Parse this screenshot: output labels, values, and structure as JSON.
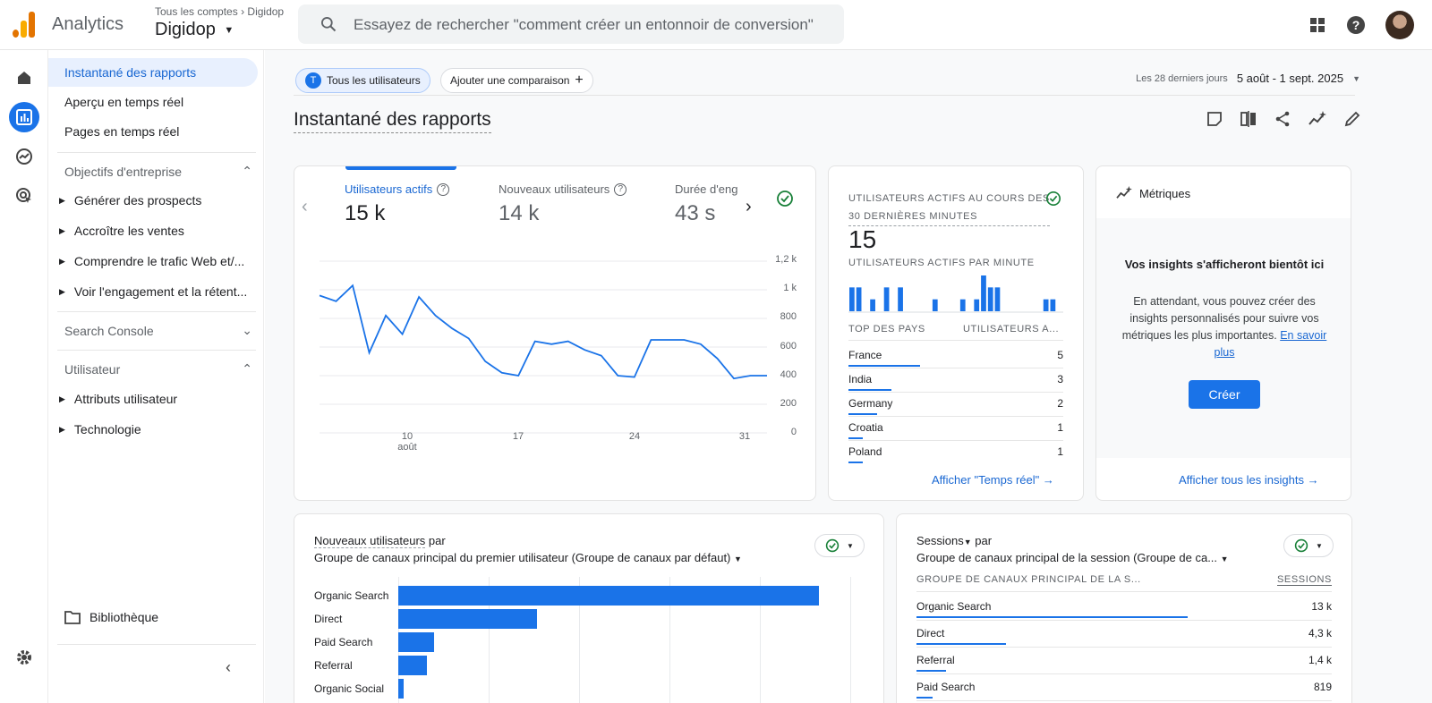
{
  "header": {
    "app_name": "Analytics",
    "account_breadcrumb": "Tous les comptes",
    "account_breadcrumb_property": "Digidop",
    "property_name": "Digidop",
    "search_placeholder": "Essayez de rechercher \"comment créer un entonnoir de conversion\""
  },
  "nav": {
    "items": [
      {
        "label": "Instantané des rapports"
      },
      {
        "label": "Aperçu en temps réel"
      },
      {
        "label": "Pages en temps réel"
      }
    ],
    "section_objectives": "Objectifs d'entreprise",
    "objectives": [
      "Générer des prospects",
      "Accroître les ventes",
      "Comprendre le trafic Web et/...",
      "Voir l'engagement et la rétent..."
    ],
    "section_search_console": "Search Console",
    "section_user": "Utilisateur",
    "user_items": [
      "Attributs utilisateur",
      "Technologie"
    ],
    "library": "Bibliothèque"
  },
  "toolbar": {
    "segment_initial": "T",
    "segment": "Tous les utilisateurs",
    "add_comparison": "Ajouter une comparaison",
    "date_label": "Les 28 derniers jours",
    "date_range": "5 août - 1 sept. 2025"
  },
  "page_title": "Instantané des rapports",
  "metrics_card": {
    "metrics": [
      {
        "label": "Utilisateurs actifs",
        "value": "15 k"
      },
      {
        "label": "Nouveaux utilisateurs",
        "value": "14 k"
      },
      {
        "label": "Durée d'eng",
        "value": "43 s"
      }
    ],
    "y_ticks": [
      "1,2 k",
      "1 k",
      "800",
      "600",
      "400",
      "200",
      "0"
    ],
    "x_ticks": [
      "10",
      "17",
      "24",
      "31"
    ],
    "x_month": "août"
  },
  "chart_data": {
    "type": "line",
    "title": "Utilisateurs actifs",
    "x": [
      5,
      6,
      7,
      8,
      9,
      10,
      11,
      12,
      13,
      14,
      15,
      16,
      17,
      18,
      19,
      20,
      21,
      22,
      23,
      24,
      25,
      26,
      27,
      28,
      29,
      30,
      31,
      32
    ],
    "values": [
      960,
      920,
      1030,
      560,
      820,
      690,
      950,
      820,
      730,
      660,
      500,
      420,
      400,
      640,
      620,
      640,
      580,
      540,
      400,
      390,
      650,
      650,
      650,
      620,
      520,
      380,
      400,
      400
    ],
    "ylim": [
      0,
      1200
    ],
    "xlabel": "",
    "ylabel": ""
  },
  "realtime_card": {
    "title_line1": "Utilisateurs actifs au cours des",
    "title_line2": "30 dernières minutes",
    "value": "15",
    "per_minute_label": "Utilisateurs actifs par minute",
    "per_minute_bars": [
      2,
      2,
      0,
      1,
      0,
      2,
      0,
      2,
      0,
      0,
      0,
      0,
      1,
      0,
      0,
      0,
      1,
      0,
      1,
      3,
      2,
      2,
      0,
      0,
      0,
      0,
      0,
      0,
      1,
      1,
      0
    ],
    "col_country": "Top des pays",
    "col_users": "Utilisateurs a...",
    "countries": [
      {
        "name": "France",
        "value": "5",
        "share": 1.0
      },
      {
        "name": "India",
        "value": "3",
        "share": 0.6
      },
      {
        "name": "Germany",
        "value": "2",
        "share": 0.4
      },
      {
        "name": "Croatia",
        "value": "1",
        "share": 0.2
      },
      {
        "name": "Poland",
        "value": "1",
        "share": 0.2
      }
    ],
    "link": "Afficher \"Temps réel\""
  },
  "insights_card": {
    "title": "Métriques",
    "heading": "Vos insights s'afficheront bientôt ici",
    "body": "En attendant, vous pouvez créer des insights personnalisés pour suivre vos métriques les plus importantes.",
    "learn_more": "En savoir plus",
    "create": "Créer",
    "link": "Afficher tous les insights"
  },
  "new_users_card": {
    "title": "Nouveaux utilisateurs",
    "title_suffix": "par",
    "subtitle": "Groupe de canaux principal du premier utilisateur (Groupe de canaux par défaut)",
    "bars": [
      {
        "label": "Organic Search",
        "value": 1.0
      },
      {
        "label": "Direct",
        "value": 0.33
      },
      {
        "label": "Paid Search",
        "value": 0.085
      },
      {
        "label": "Referral",
        "value": 0.068
      },
      {
        "label": "Organic Social",
        "value": 0.012
      }
    ]
  },
  "sessions_card": {
    "title": "Sessions",
    "title_suffix": "par",
    "subtitle": "Groupe de canaux principal de la session (Groupe de ca...",
    "col_group": "Groupe de canaux principal de la s...",
    "col_sessions": "Sessions",
    "rows": [
      {
        "label": "Organic Search",
        "value": "13 k",
        "share": 1.0
      },
      {
        "label": "Direct",
        "value": "4,3 k",
        "share": 0.33
      },
      {
        "label": "Referral",
        "value": "1,4 k",
        "share": 0.11
      },
      {
        "label": "Paid Search",
        "value": "819",
        "share": 0.06
      }
    ]
  }
}
